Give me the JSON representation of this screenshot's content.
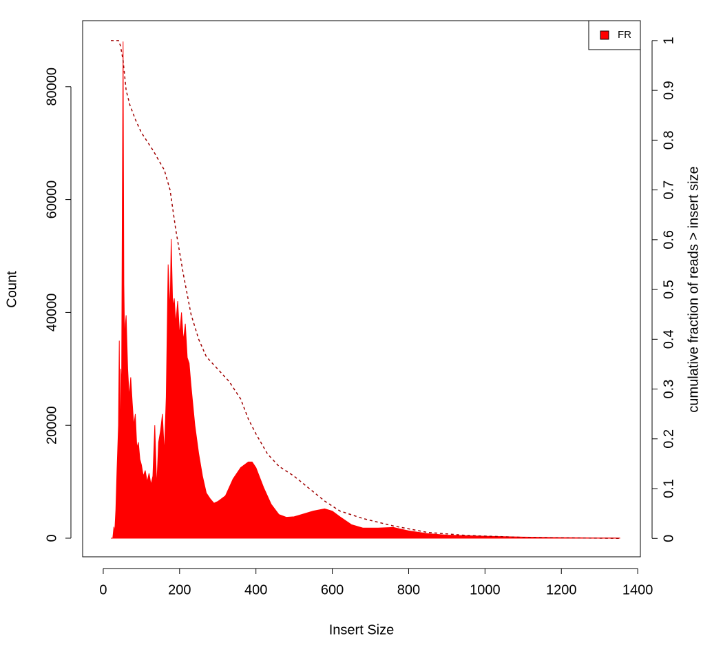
{
  "chart_data": {
    "type": "area",
    "xlabel": "Insert Size",
    "ylabel": "Count",
    "y2label": "cumulative fraction of reads > insert size",
    "xlim": [
      -54,
      1407
    ],
    "xticks": [
      0,
      200,
      400,
      600,
      800,
      1000,
      1200,
      1400
    ],
    "ylim": [
      -3300,
      91700
    ],
    "yticks": [
      0,
      20000,
      40000,
      60000,
      80000
    ],
    "y2lim": [
      -0.037,
      1.04
    ],
    "y2ticks": [
      0,
      0.1,
      0.2,
      0.3,
      0.4,
      0.5,
      0.6,
      0.7,
      0.8,
      0.9,
      1
    ],
    "legend": "top-right",
    "series": [
      {
        "name": "FR",
        "color": "#ff0000",
        "x": [
          20,
          25,
          28,
          30,
          33,
          36,
          40,
          42,
          44,
          46,
          48,
          50,
          52,
          54,
          56,
          58,
          60,
          64,
          68,
          72,
          76,
          80,
          84,
          88,
          92,
          96,
          100,
          105,
          110,
          115,
          120,
          125,
          130,
          135,
          140,
          145,
          150,
          155,
          160,
          165,
          170,
          175,
          178,
          182,
          186,
          190,
          195,
          200,
          205,
          210,
          215,
          220,
          225,
          230,
          240,
          250,
          260,
          270,
          280,
          290,
          300,
          310,
          320,
          330,
          340,
          360,
          380,
          390,
          400,
          420,
          440,
          460,
          480,
          500,
          520,
          550,
          580,
          600,
          620,
          650,
          680,
          720,
          760,
          800,
          850,
          900,
          1000,
          1100,
          1200,
          1300,
          1353
        ],
        "values": [
          0,
          0,
          2000,
          1000,
          5000,
          12000,
          20000,
          35000,
          15000,
          30000,
          25000,
          60000,
          88000,
          45000,
          35000,
          38000,
          39500,
          30000,
          25000,
          28500,
          24000,
          20000,
          22000,
          16000,
          17000,
          14000,
          13000,
          11000,
          12000,
          10000,
          11500,
          9500,
          11000,
          20000,
          9000,
          17000,
          19000,
          22000,
          15000,
          25000,
          48500,
          40000,
          53000,
          41000,
          42500,
          38000,
          42000,
          36000,
          40000,
          35000,
          38000,
          32000,
          31000,
          27000,
          20000,
          15000,
          11000,
          8000,
          7000,
          6200,
          6500,
          7000,
          7500,
          9000,
          10500,
          12500,
          13500,
          13500,
          12500,
          9000,
          6000,
          4200,
          3700,
          3800,
          4200,
          4800,
          5200,
          4800,
          3800,
          2400,
          1800,
          1800,
          1900,
          1300,
          800,
          550,
          350,
          200,
          100,
          50,
          30
        ]
      },
      {
        "axis": "y2",
        "color": "#a00000",
        "style": "dashed",
        "x": [
          20,
          40,
          45,
          52,
          60,
          70,
          85,
          100,
          130,
          160,
          175,
          190,
          210,
          230,
          250,
          270,
          300,
          330,
          360,
          380,
          400,
          430,
          460,
          500,
          540,
          580,
          620,
          680,
          760,
          850,
          950,
          1100,
          1353
        ],
        "values": [
          1,
          1,
          0.99,
          0.96,
          0.9,
          0.87,
          0.84,
          0.815,
          0.78,
          0.74,
          0.7,
          0.62,
          0.53,
          0.45,
          0.4,
          0.365,
          0.34,
          0.315,
          0.28,
          0.24,
          0.21,
          0.17,
          0.145,
          0.125,
          0.1,
          0.075,
          0.055,
          0.04,
          0.025,
          0.012,
          0.006,
          0.002,
          0
        ]
      }
    ]
  }
}
